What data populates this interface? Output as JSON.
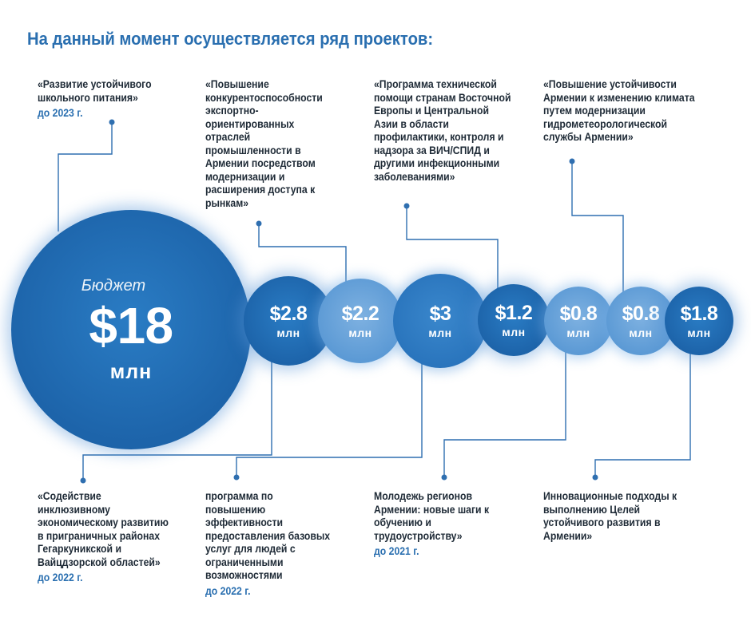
{
  "title": "На данный момент осуществляется ряд проектов:",
  "bubbles": {
    "total": {
      "caption": "Бюджет",
      "amount": "$18",
      "unit": "млн"
    },
    "b1": {
      "amount": "$2.8",
      "unit": "млн"
    },
    "b2": {
      "amount": "$2.2",
      "unit": "млн"
    },
    "b3": {
      "amount": "$3",
      "unit": "млн"
    },
    "b4": {
      "amount": "$1.2",
      "unit": "млн"
    },
    "b5": {
      "amount": "$0.8",
      "unit": "млн"
    },
    "b6": {
      "amount": "$0.8",
      "unit": "млн"
    },
    "b7": {
      "amount": "$1.8",
      "unit": "млн"
    }
  },
  "projects": {
    "school_meals": {
      "text": "«Развитие устойчивого школьного питания»",
      "year": "до 2023 г."
    },
    "export_competitiveness": {
      "text": "«Повышение конкурентоспособности экспортно-ориентированных отраслей промышленности в Армении посредством модернизации и расширения доступа к рынкам»"
    },
    "hiv_program": {
      "text": "«Программа технической помощи странам Восточной Европы и Центральной Азии в области профилактики, контроля и надзора за ВИЧ/СПИД и другими инфекционными заболеваниями»"
    },
    "climate_resilience": {
      "text": "«Повышение устойчивости Армении к изменению климата путем модернизации гидрометеорологической службы Армении»"
    },
    "inclusive_development": {
      "text": "«Содействие инклюзивному экономическому развитию в приграничных районах Гегаркуникской и Вайцдзорской областей»",
      "year": "до 2022 г."
    },
    "disability_services": {
      "text": "программа по повышению эффективности предоставления базовых услуг для людей с ограниченными возможностями",
      "year": "до 2022 г."
    },
    "youth_regions": {
      "text": "Молодежь регионов Армении: новые шаги к обучению и трудоустройству»",
      "year": "до 2021 г."
    },
    "sdg_approaches": {
      "text": "Инновационные подходы к выполнению Целей устойчивого развития в Армении»"
    }
  },
  "colors": {
    "accent": "#2a6fb0",
    "bubble_dark": "#1d64aa",
    "bubble_light": "#5c9ad5",
    "line": "#2f6fb0"
  }
}
